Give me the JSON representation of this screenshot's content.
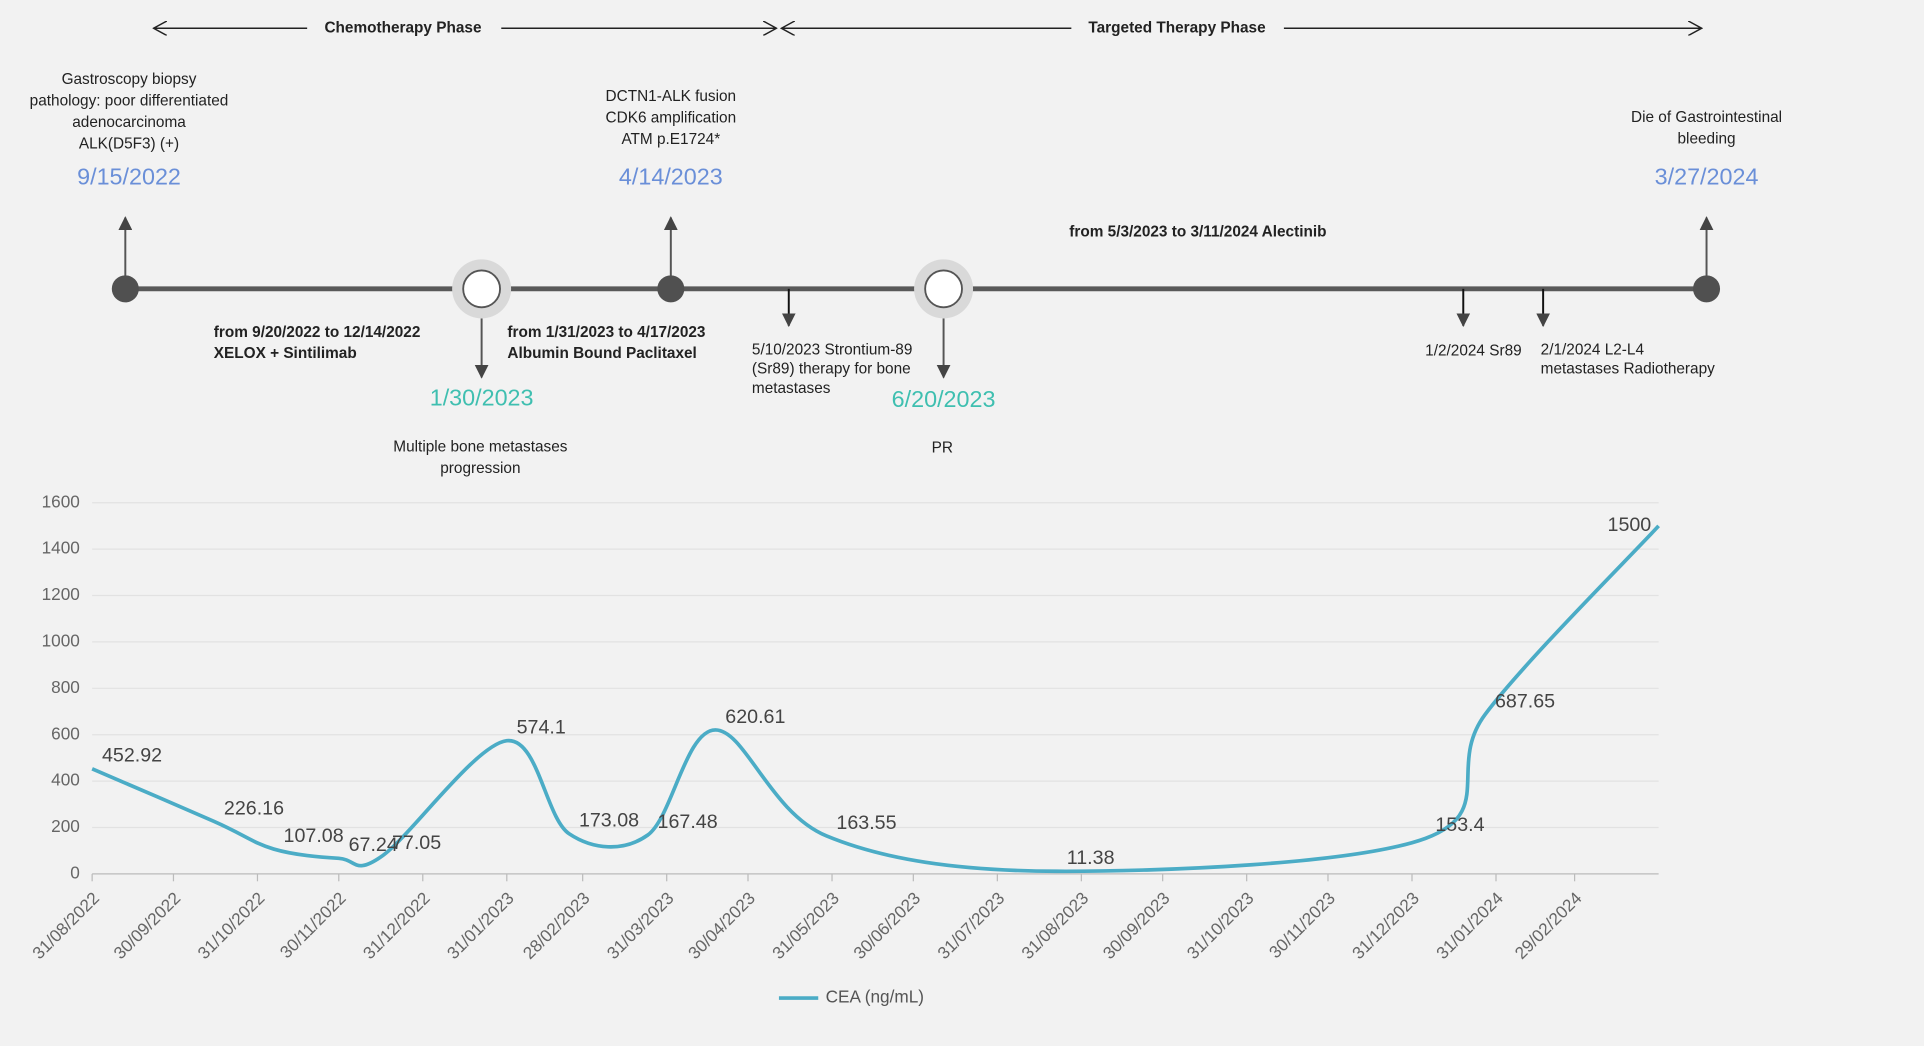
{
  "timeline": {
    "phases": [
      "Chemotherapy Phase",
      "Targeted Therapy Phase"
    ],
    "events_above": [
      {
        "lines": [
          "Gastroscopy biopsy",
          "pathology: poor differentiated",
          "adenocarcinoma",
          "ALK(D5F3) (+)"
        ],
        "date": "9/15/2022"
      },
      {
        "lines": [
          "DCTN1-ALK fusion",
          "CDK6 amplification",
          "ATM p.E1724*"
        ],
        "date": "4/14/2023"
      },
      {
        "lines": [
          "Die of Gastrointestinal",
          "bleeding"
        ],
        "date": "3/27/2024"
      }
    ],
    "evaluations": [
      {
        "date": "1/30/2023",
        "lines": [
          "Multiple bone metastases",
          "progression"
        ]
      },
      {
        "date": "6/20/2023",
        "lines": [
          "PR"
        ]
      }
    ],
    "treatments": [
      {
        "lines": [
          "from 9/20/2022 to 12/14/2022",
          "XELOX + Sintilimab"
        ]
      },
      {
        "lines": [
          "from 1/31/2023 to 4/17/2023",
          "Albumin Bound Paclitaxel"
        ]
      },
      {
        "lines": [
          "from 5/3/2023 to 3/11/2024 Alectinib"
        ]
      }
    ],
    "notes": [
      {
        "lines": [
          "5/10/2023 Strontium-89",
          "(Sr89) therapy for bone",
          "metastases"
        ]
      },
      {
        "lines": [
          "1/2/2024 Sr89"
        ]
      },
      {
        "lines": [
          "2/1/2024 L2-L4",
          "metastases Radiotherapy"
        ]
      }
    ]
  },
  "chart_data": {
    "type": "line",
    "x": [
      "31/08/2022",
      "15/10/2022",
      "06/11/2022",
      "30/11/2022",
      "16/12/2022",
      "31/01/2023",
      "23/02/2023",
      "24/03/2023",
      "18/04/2023",
      "29/05/2023",
      "22/08/2023",
      "05/01/2024",
      "27/01/2024",
      "31/03/2024"
    ],
    "series": [
      {
        "name": "CEA (ng/mL)",
        "color": "#4bacc6",
        "values": [
          452.92,
          226.16,
          107.08,
          67.24,
          77.05,
          574.1,
          173.08,
          167.48,
          620.61,
          163.55,
          11.38,
          153.4,
          687.65,
          1500
        ]
      }
    ],
    "xlim": [
      "31/08/2022",
      "31/03/2024"
    ],
    "xticks": [
      "31/08/2022",
      "30/09/2022",
      "31/10/2022",
      "30/11/2022",
      "31/12/2022",
      "31/01/2023",
      "28/02/2023",
      "31/03/2023",
      "30/04/2023",
      "31/05/2023",
      "30/06/2023",
      "31/07/2023",
      "31/08/2023",
      "30/09/2023",
      "31/10/2023",
      "30/11/2023",
      "31/12/2023",
      "31/01/2024",
      "29/02/2024"
    ],
    "ylim": [
      0,
      1600
    ],
    "yticks": [
      0,
      200,
      400,
      600,
      800,
      1000,
      1200,
      1400,
      1600
    ],
    "grid": true,
    "legend": "bottom"
  }
}
